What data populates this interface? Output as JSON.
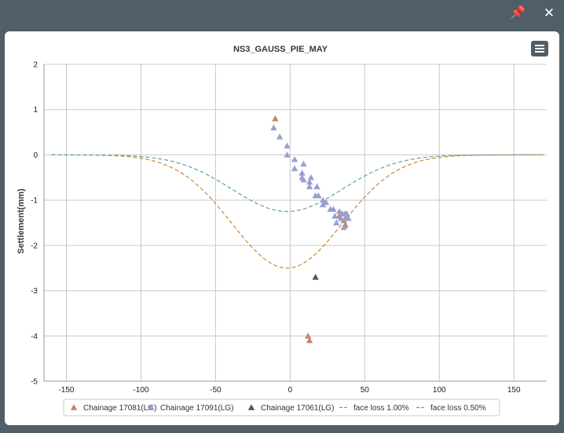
{
  "window": {
    "pin_icon": "pin-icon",
    "close_icon": "close-icon",
    "pin_glyph": "📌",
    "close_glyph": "✕",
    "menu_icon": "hamburger-menu-icon"
  },
  "colors": {
    "titlebar": "#4f5e67",
    "chainage_17081": "#c8836b",
    "chainage_17091": "#96a0d2",
    "chainage_17061": "#6b4c55",
    "face_loss_1": "#d4822e",
    "face_loss_05": "#5aa5a0"
  },
  "chart_data": {
    "type": "scatter",
    "title": "NS3_GAUSS_PIE_MAY",
    "xlabel": "",
    "ylabel": "Settlement(mm)",
    "xlim": [
      -165,
      172
    ],
    "ylim": [
      -5,
      2
    ],
    "xticks": [
      -150,
      -100,
      -50,
      0,
      50,
      100,
      150
    ],
    "yticks": [
      2,
      1,
      0,
      -1,
      -2,
      -3,
      -4,
      -5
    ],
    "grid": true,
    "legend_position": "bottom",
    "series": [
      {
        "name": "Chainage 17081(LG)",
        "marker": "triangle",
        "points": [
          [
            -10,
            0.8
          ],
          [
            33,
            -1.35
          ],
          [
            35,
            -1.3
          ],
          [
            36,
            -1.45
          ],
          [
            37,
            -1.3
          ],
          [
            37,
            -1.55
          ],
          [
            38,
            -1.35
          ],
          [
            12,
            -4.0
          ],
          [
            13,
            -4.1
          ]
        ]
      },
      {
        "name": "Chainage 17091(LG)",
        "marker": "triangle",
        "points": [
          [
            -11,
            0.6
          ],
          [
            -7,
            0.4
          ],
          [
            -2,
            0.2
          ],
          [
            -2,
            0.0
          ],
          [
            3,
            -0.1
          ],
          [
            3,
            -0.3
          ],
          [
            8,
            -0.4
          ],
          [
            9,
            -0.2
          ],
          [
            8,
            -0.5
          ],
          [
            9,
            -0.55
          ],
          [
            13,
            -0.6
          ],
          [
            14,
            -0.5
          ],
          [
            13,
            -0.7
          ],
          [
            17,
            -0.9
          ],
          [
            18,
            -0.7
          ],
          [
            19,
            -0.9
          ],
          [
            22,
            -1.0
          ],
          [
            22,
            -1.1
          ],
          [
            24,
            -1.05
          ],
          [
            27,
            -1.2
          ],
          [
            29,
            -1.2
          ],
          [
            30,
            -1.35
          ],
          [
            31,
            -1.5
          ],
          [
            33,
            -1.25
          ],
          [
            34,
            -1.4
          ],
          [
            35,
            -1.3
          ],
          [
            36,
            -1.6
          ],
          [
            37,
            -1.4
          ],
          [
            38,
            -1.3
          ],
          [
            39,
            -1.4
          ]
        ]
      },
      {
        "name": "Chainage 17061(LG)",
        "marker": "triangle",
        "points": [
          [
            17,
            -2.7
          ]
        ]
      },
      {
        "name": "face loss 1.00%",
        "line": "dashed",
        "curve": {
          "type": "gaussian",
          "center": -2,
          "peak": -2.5,
          "sigma": 37
        },
        "x_range": [
          -160,
          170
        ]
      },
      {
        "name": "face loss 0.50%",
        "line": "dashed",
        "curve": {
          "type": "gaussian",
          "center": -2,
          "peak": -1.25,
          "sigma": 37
        },
        "x_range": [
          -160,
          170
        ]
      }
    ]
  }
}
